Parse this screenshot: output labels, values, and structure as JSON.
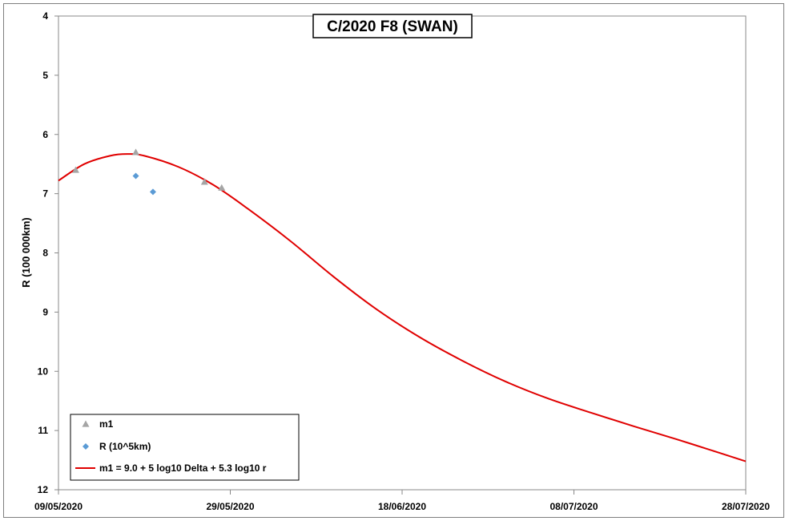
{
  "chart_data": {
    "type": "scatter",
    "title": "C/2020 F8 (SWAN)",
    "ylabel": "R (100 000km)",
    "xlabel": "",
    "ylim": [
      4,
      12
    ],
    "y_inverted": true,
    "y_ticks": [
      4,
      5,
      6,
      7,
      8,
      9,
      10,
      11,
      12
    ],
    "xlim": [
      "2020-05-09",
      "2020-07-28"
    ],
    "x_ticks": [
      "09/05/2020",
      "29/05/2020",
      "18/06/2020",
      "08/07/2020",
      "28/07/2020"
    ],
    "legend_position": "bottom-left",
    "grid": false,
    "series": [
      {
        "name": "m1",
        "kind": "scatter",
        "marker": "triangle",
        "color": "#a5a5a5",
        "points": [
          {
            "x": "2020-05-11",
            "y": 6.6
          },
          {
            "x": "2020-05-18",
            "y": 6.3
          },
          {
            "x": "2020-05-26",
            "y": 6.8
          },
          {
            "x": "2020-05-28",
            "y": 6.9
          }
        ]
      },
      {
        "name": "R (10^5km)",
        "kind": "scatter",
        "marker": "diamond",
        "color": "#5b9bd5",
        "points": [
          {
            "x": "2020-05-18",
            "y": 6.7
          },
          {
            "x": "2020-05-20",
            "y": 6.97
          }
        ]
      },
      {
        "name": "m1 = 9.0 + 5 log10 Delta + 5.3 log10 r",
        "kind": "line",
        "color": "#e00000",
        "points": [
          {
            "x": "2020-05-09",
            "y": 6.78
          },
          {
            "x": "2020-05-12",
            "y": 6.5
          },
          {
            "x": "2020-05-15",
            "y": 6.36
          },
          {
            "x": "2020-05-17",
            "y": 6.33
          },
          {
            "x": "2020-05-19",
            "y": 6.36
          },
          {
            "x": "2020-05-23",
            "y": 6.55
          },
          {
            "x": "2020-05-27",
            "y": 6.85
          },
          {
            "x": "2020-05-31",
            "y": 7.25
          },
          {
            "x": "2020-06-05",
            "y": 7.8
          },
          {
            "x": "2020-06-10",
            "y": 8.4
          },
          {
            "x": "2020-06-15",
            "y": 8.95
          },
          {
            "x": "2020-06-20",
            "y": 9.42
          },
          {
            "x": "2020-06-25",
            "y": 9.82
          },
          {
            "x": "2020-06-30",
            "y": 10.17
          },
          {
            "x": "2020-07-05",
            "y": 10.46
          },
          {
            "x": "2020-07-10",
            "y": 10.7
          },
          {
            "x": "2020-07-15",
            "y": 10.93
          },
          {
            "x": "2020-07-20",
            "y": 11.15
          },
          {
            "x": "2020-07-25",
            "y": 11.38
          },
          {
            "x": "2020-07-28",
            "y": 11.52
          }
        ]
      }
    ]
  }
}
